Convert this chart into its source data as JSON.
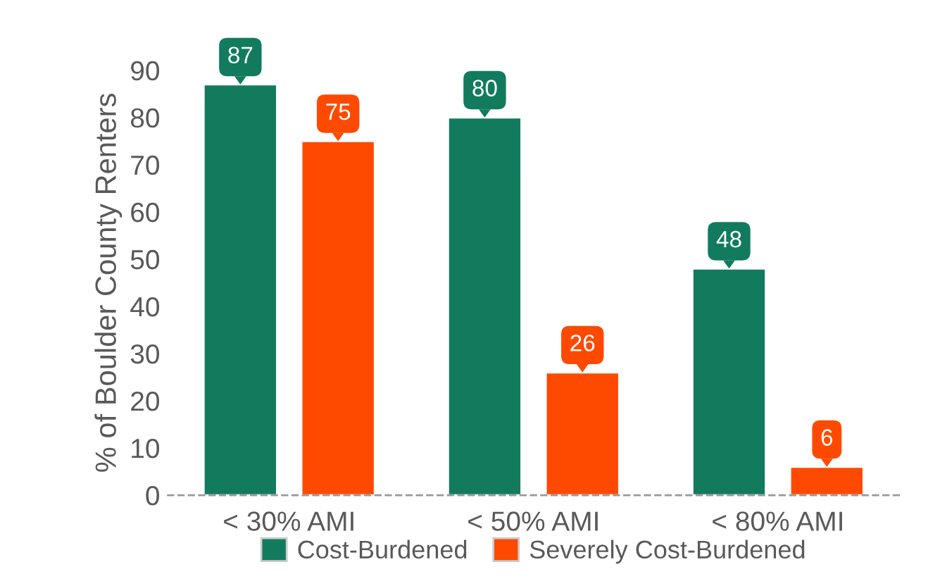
{
  "chart_data": {
    "type": "bar",
    "ylabel": "% of Boulder County Renters",
    "categories": [
      "< 30% AMI",
      "< 50% AMI",
      "< 80% AMI"
    ],
    "series": [
      {
        "name": "Cost-Burdened",
        "color": "#127b5e",
        "values": [
          87,
          80,
          48
        ]
      },
      {
        "name": "Severely Cost-Burdened",
        "color": "#fe4a00",
        "values": [
          75,
          26,
          6
        ]
      }
    ],
    "ylim": [
      0,
      90
    ],
    "yticks": [
      0,
      10,
      20,
      30,
      40,
      50,
      60,
      70,
      80,
      90
    ],
    "ref_lines": [
      {
        "axis": "y",
        "value": 0,
        "color": "#999999",
        "line_style": "dashed"
      }
    ],
    "data_labels": true,
    "grid": false,
    "legend": "bottom"
  }
}
